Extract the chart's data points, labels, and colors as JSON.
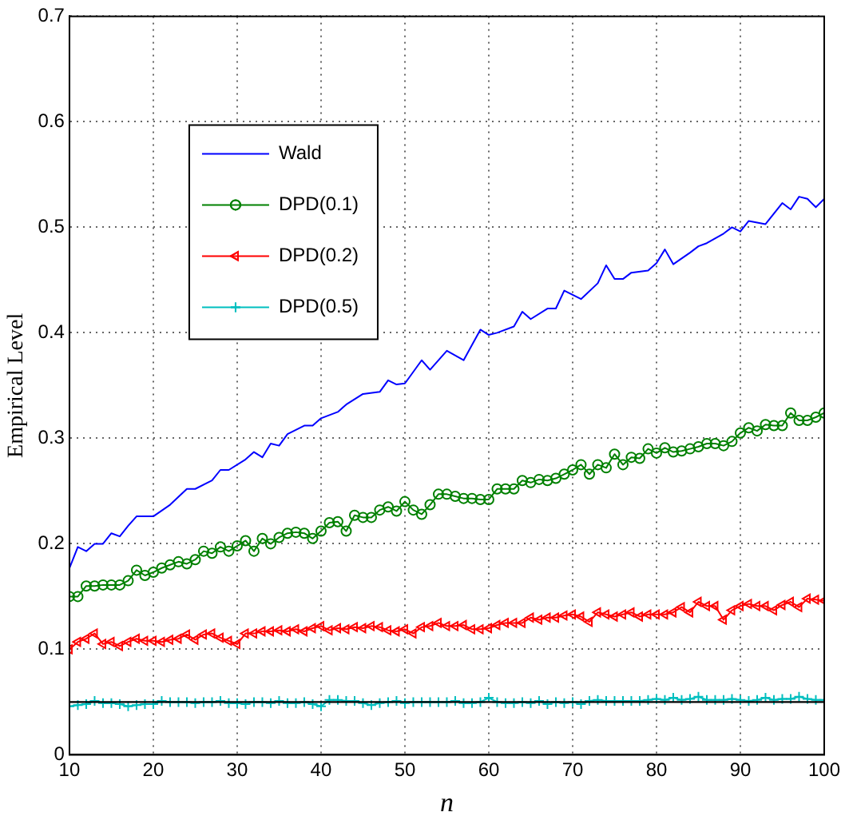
{
  "chart_data": {
    "type": "line",
    "xlabel": "n",
    "ylabel": "Empirical Level",
    "x": [
      10,
      11,
      12,
      13,
      14,
      15,
      16,
      17,
      18,
      19,
      20,
      21,
      22,
      23,
      24,
      25,
      26,
      27,
      28,
      29,
      30,
      31,
      32,
      33,
      34,
      35,
      36,
      37,
      38,
      39,
      40,
      41,
      42,
      43,
      44,
      45,
      46,
      47,
      48,
      49,
      50,
      51,
      52,
      53,
      54,
      55,
      56,
      57,
      58,
      59,
      60,
      61,
      62,
      63,
      64,
      65,
      66,
      67,
      68,
      69,
      70,
      71,
      72,
      73,
      74,
      75,
      76,
      77,
      78,
      79,
      80,
      81,
      82,
      83,
      84,
      85,
      86,
      87,
      88,
      89,
      90,
      91,
      92,
      93,
      94,
      95,
      96,
      97,
      98,
      99,
      100
    ],
    "xlim": [
      10,
      100
    ],
    "xticks": [
      10,
      20,
      30,
      40,
      50,
      60,
      70,
      80,
      90,
      100
    ],
    "ylim": [
      0,
      0.7
    ],
    "yticks": [
      0,
      0.1,
      0.2,
      0.3,
      0.4,
      0.5,
      0.6,
      0.7
    ],
    "grid": true,
    "legend": "top left",
    "ref_lines": [
      {
        "axis": "y",
        "value": 0.05,
        "color": "#000000"
      }
    ],
    "series": [
      {
        "name": "Wald",
        "color": "#0000ff",
        "marker": "none",
        "x": [
          10,
          11,
          12,
          13,
          14,
          15,
          16,
          17,
          18,
          20,
          22,
          24,
          25,
          27,
          28,
          29,
          31,
          32,
          33,
          34,
          35,
          36,
          38,
          39,
          40,
          42,
          43,
          45,
          47,
          48,
          49,
          50,
          52,
          53,
          55,
          57,
          59,
          60,
          61,
          63,
          64,
          65,
          67,
          68,
          69,
          71,
          73,
          74,
          75,
          76,
          77,
          79,
          80,
          81,
          82,
          84,
          85,
          86,
          88,
          89,
          90,
          91,
          93,
          95,
          96,
          97,
          98,
          99,
          100
        ],
        "values": [
          0.177,
          0.197,
          0.193,
          0.2,
          0.2,
          0.21,
          0.207,
          0.217,
          0.226,
          0.226,
          0.237,
          0.252,
          0.252,
          0.26,
          0.27,
          0.27,
          0.28,
          0.287,
          0.282,
          0.295,
          0.293,
          0.304,
          0.312,
          0.312,
          0.319,
          0.325,
          0.332,
          0.342,
          0.344,
          0.355,
          0.351,
          0.352,
          0.374,
          0.365,
          0.383,
          0.374,
          0.403,
          0.398,
          0.4,
          0.406,
          0.42,
          0.413,
          0.423,
          0.423,
          0.44,
          0.432,
          0.447,
          0.464,
          0.451,
          0.451,
          0.457,
          0.459,
          0.466,
          0.479,
          0.465,
          0.476,
          0.482,
          0.485,
          0.494,
          0.5,
          0.496,
          0.506,
          0.503,
          0.523,
          0.517,
          0.529,
          0.527,
          0.519,
          0.527
        ]
      },
      {
        "name": "DPD(0.1)",
        "color": "#008000",
        "marker": "circle",
        "values": [
          0.15,
          0.15,
          0.16,
          0.16,
          0.161,
          0.161,
          0.161,
          0.165,
          0.175,
          0.17,
          0.173,
          0.177,
          0.18,
          0.183,
          0.181,
          0.185,
          0.193,
          0.191,
          0.197,
          0.193,
          0.198,
          0.203,
          0.193,
          0.205,
          0.2,
          0.206,
          0.21,
          0.211,
          0.21,
          0.205,
          0.212,
          0.22,
          0.221,
          0.212,
          0.227,
          0.225,
          0.225,
          0.232,
          0.235,
          0.231,
          0.24,
          0.232,
          0.228,
          0.237,
          0.247,
          0.247,
          0.245,
          0.243,
          0.243,
          0.242,
          0.242,
          0.252,
          0.252,
          0.252,
          0.26,
          0.258,
          0.261,
          0.26,
          0.262,
          0.266,
          0.27,
          0.275,
          0.266,
          0.275,
          0.272,
          0.285,
          0.275,
          0.282,
          0.281,
          0.29,
          0.286,
          0.291,
          0.287,
          0.288,
          0.29,
          0.292,
          0.295,
          0.295,
          0.293,
          0.297,
          0.305,
          0.31,
          0.307,
          0.313,
          0.312,
          0.312,
          0.324,
          0.317,
          0.317,
          0.32,
          0.324
        ]
      },
      {
        "name": "DPD(0.2)",
        "color": "#ff0000",
        "marker": "triangle",
        "values": [
          0.1,
          0.107,
          0.11,
          0.115,
          0.105,
          0.107,
          0.103,
          0.107,
          0.11,
          0.108,
          0.108,
          0.107,
          0.109,
          0.11,
          0.114,
          0.109,
          0.114,
          0.115,
          0.111,
          0.108,
          0.105,
          0.115,
          0.115,
          0.117,
          0.117,
          0.118,
          0.117,
          0.119,
          0.117,
          0.12,
          0.122,
          0.118,
          0.12,
          0.119,
          0.121,
          0.12,
          0.122,
          0.121,
          0.118,
          0.117,
          0.119,
          0.115,
          0.121,
          0.122,
          0.125,
          0.122,
          0.122,
          0.123,
          0.119,
          0.119,
          0.12,
          0.123,
          0.125,
          0.125,
          0.125,
          0.13,
          0.128,
          0.13,
          0.13,
          0.132,
          0.133,
          0.131,
          0.126,
          0.135,
          0.133,
          0.131,
          0.133,
          0.135,
          0.131,
          0.133,
          0.133,
          0.133,
          0.135,
          0.14,
          0.135,
          0.145,
          0.141,
          0.141,
          0.128,
          0.137,
          0.141,
          0.143,
          0.141,
          0.141,
          0.137,
          0.142,
          0.145,
          0.14,
          0.148,
          0.147,
          0.146
        ]
      },
      {
        "name": "DPD(0.5)",
        "color": "#00bfbf",
        "marker": "cross",
        "values": [
          0.046,
          0.047,
          0.048,
          0.051,
          0.049,
          0.049,
          0.048,
          0.046,
          0.047,
          0.048,
          0.048,
          0.051,
          0.05,
          0.05,
          0.05,
          0.049,
          0.05,
          0.05,
          0.051,
          0.049,
          0.049,
          0.048,
          0.05,
          0.05,
          0.049,
          0.051,
          0.049,
          0.049,
          0.05,
          0.048,
          0.046,
          0.052,
          0.052,
          0.051,
          0.051,
          0.049,
          0.047,
          0.049,
          0.05,
          0.051,
          0.049,
          0.05,
          0.05,
          0.05,
          0.05,
          0.05,
          0.051,
          0.049,
          0.049,
          0.05,
          0.054,
          0.05,
          0.049,
          0.049,
          0.05,
          0.049,
          0.051,
          0.048,
          0.05,
          0.049,
          0.05,
          0.048,
          0.051,
          0.052,
          0.051,
          0.051,
          0.051,
          0.051,
          0.051,
          0.052,
          0.053,
          0.052,
          0.054,
          0.052,
          0.053,
          0.055,
          0.052,
          0.052,
          0.052,
          0.053,
          0.052,
          0.051,
          0.052,
          0.054,
          0.052,
          0.053,
          0.053,
          0.055,
          0.053,
          0.052,
          0.052
        ]
      }
    ]
  }
}
